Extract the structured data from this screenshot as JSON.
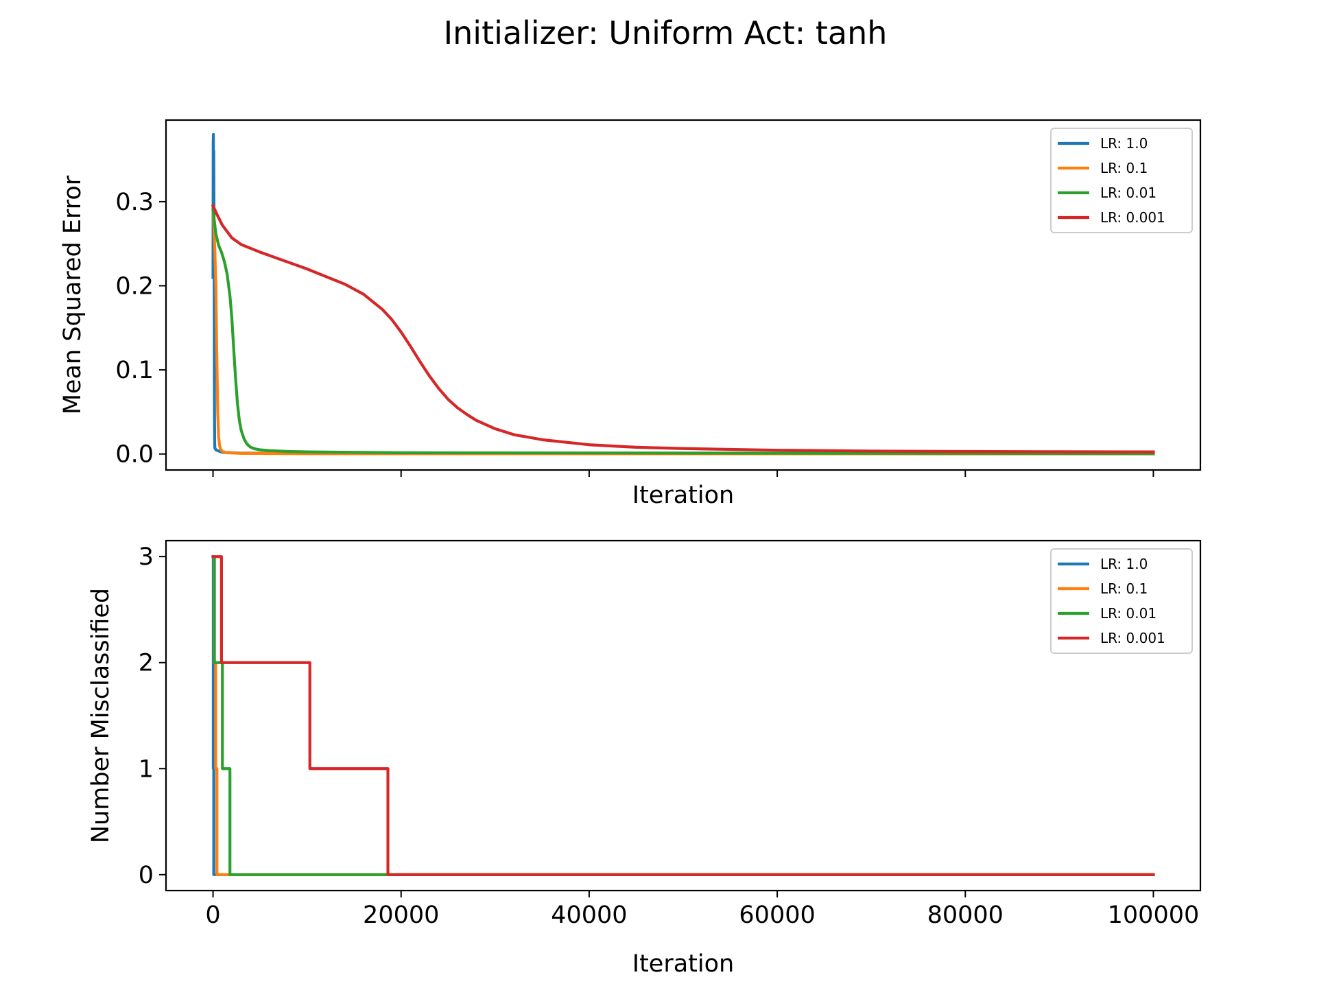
{
  "figure": {
    "title": "Initializer: Uniform Act: tanh"
  },
  "chart_data": [
    {
      "type": "line",
      "id": "mse",
      "title": "",
      "xlabel": "Iteration",
      "ylabel": "Mean Squared Error",
      "xlim": [
        -5000,
        105000
      ],
      "ylim": [
        -0.019,
        0.397
      ],
      "x_ticks": [
        0,
        20000,
        40000,
        60000,
        80000,
        100000
      ],
      "x_tick_labels_visible": false,
      "y_ticks": [
        0.0,
        0.1,
        0.2,
        0.3
      ],
      "y_tick_labels": [
        "0.0",
        "0.1",
        "0.2",
        "0.3"
      ],
      "grid": false,
      "legend_position": "upper right",
      "series": [
        {
          "name": "LR: 1.0",
          "color": "#1f77b4",
          "x": [
            0,
            20,
            40,
            60,
            80,
            100,
            120,
            140,
            160,
            180,
            200,
            300,
            500,
            1000,
            3000,
            100000
          ],
          "y": [
            0.21,
            0.37,
            0.38,
            0.27,
            0.36,
            0.3,
            0.22,
            0.1,
            0.04,
            0.012,
            0.007,
            0.005,
            0.004,
            0.002,
            0.001,
            0.0003
          ]
        },
        {
          "name": "LR: 0.1",
          "color": "#ff7f0e",
          "x": [
            0,
            100,
            200,
            300,
            400,
            500,
            600,
            700,
            800,
            1000,
            1500,
            3000,
            10000,
            100000
          ],
          "y": [
            0.29,
            0.27,
            0.24,
            0.2,
            0.12,
            0.05,
            0.02,
            0.01,
            0.006,
            0.003,
            0.0015,
            0.0008,
            0.0004,
            0.0001
          ]
        },
        {
          "name": "LR: 0.01",
          "color": "#2ca02c",
          "x": [
            0,
            300,
            600,
            900,
            1200,
            1500,
            1800,
            2000,
            2200,
            2400,
            2600,
            2800,
            3000,
            3300,
            3600,
            4000,
            4500,
            5000,
            6000,
            8000,
            10000,
            20000,
            100000
          ],
          "y": [
            0.29,
            0.262,
            0.248,
            0.24,
            0.229,
            0.214,
            0.188,
            0.162,
            0.125,
            0.09,
            0.06,
            0.04,
            0.028,
            0.018,
            0.012,
            0.008,
            0.006,
            0.005,
            0.004,
            0.003,
            0.0025,
            0.0015,
            0.0005
          ]
        },
        {
          "name": "LR: 0.001",
          "color": "#d62728",
          "x": [
            0,
            500,
            1000,
            2000,
            3000,
            5000,
            8000,
            10000,
            12000,
            14000,
            16000,
            18000,
            19000,
            20000,
            21000,
            22000,
            23000,
            24000,
            25000,
            26000,
            27000,
            28000,
            30000,
            32000,
            35000,
            40000,
            45000,
            50000,
            60000,
            70000,
            80000,
            90000,
            100000
          ],
          "y": [
            0.295,
            0.283,
            0.272,
            0.257,
            0.249,
            0.24,
            0.228,
            0.22,
            0.211,
            0.202,
            0.19,
            0.172,
            0.16,
            0.145,
            0.128,
            0.11,
            0.093,
            0.078,
            0.065,
            0.055,
            0.047,
            0.04,
            0.03,
            0.023,
            0.017,
            0.011,
            0.008,
            0.0065,
            0.0045,
            0.0035,
            0.003,
            0.0027,
            0.0025
          ]
        }
      ]
    },
    {
      "type": "line",
      "id": "misclassified",
      "title": "",
      "xlabel": "Iteration",
      "ylabel": "Number Misclassified",
      "xlim": [
        -5000,
        105000
      ],
      "ylim": [
        -0.15,
        3.15
      ],
      "x_ticks": [
        0,
        20000,
        40000,
        60000,
        80000,
        100000
      ],
      "x_tick_labels": [
        "0",
        "20000",
        "40000",
        "60000",
        "80000",
        "100000"
      ],
      "y_ticks": [
        0,
        1,
        2,
        3
      ],
      "y_tick_labels": [
        "0",
        "1",
        "2",
        "3"
      ],
      "grid": false,
      "legend_position": "upper right",
      "series": [
        {
          "name": "LR: 1.0",
          "color": "#1f77b4",
          "x": [
            0,
            30,
            30,
            80,
            80,
            100000
          ],
          "y": [
            3,
            3,
            1,
            1,
            0,
            0
          ]
        },
        {
          "name": "LR: 0.1",
          "color": "#ff7f0e",
          "x": [
            0,
            120,
            120,
            280,
            280,
            420,
            420,
            100000
          ],
          "y": [
            3,
            3,
            2,
            2,
            1,
            1,
            0,
            0
          ]
        },
        {
          "name": "LR: 0.01",
          "color": "#2ca02c",
          "x": [
            0,
            150,
            150,
            1000,
            1000,
            1800,
            1800,
            100000
          ],
          "y": [
            3,
            3,
            2,
            2,
            1,
            1,
            0,
            0
          ]
        },
        {
          "name": "LR: 0.001",
          "color": "#d62728",
          "x": [
            0,
            900,
            900,
            10300,
            10300,
            18600,
            18600,
            100000
          ],
          "y": [
            3,
            3,
            2,
            2,
            1,
            1,
            0,
            0
          ]
        }
      ]
    }
  ]
}
